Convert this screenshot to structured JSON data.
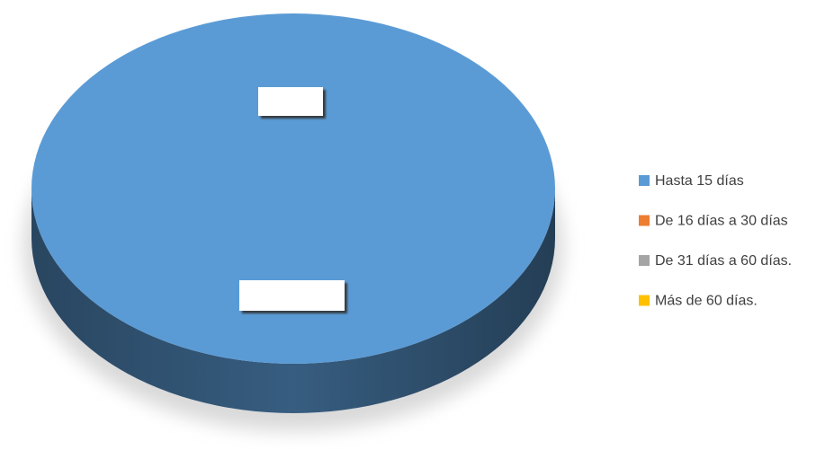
{
  "chart_data": {
    "type": "pie",
    "three_d": true,
    "categories": [
      "Hasta 15 días",
      "De 16 días a 30 días",
      "De 31 días a 60 días.",
      "Más de 60 días."
    ],
    "values": [
      100,
      0,
      0,
      0
    ],
    "colors": [
      "#5b9bd5",
      "#ed7d31",
      "#a5a5a5",
      "#ffc000"
    ],
    "legend": "right"
  }
}
